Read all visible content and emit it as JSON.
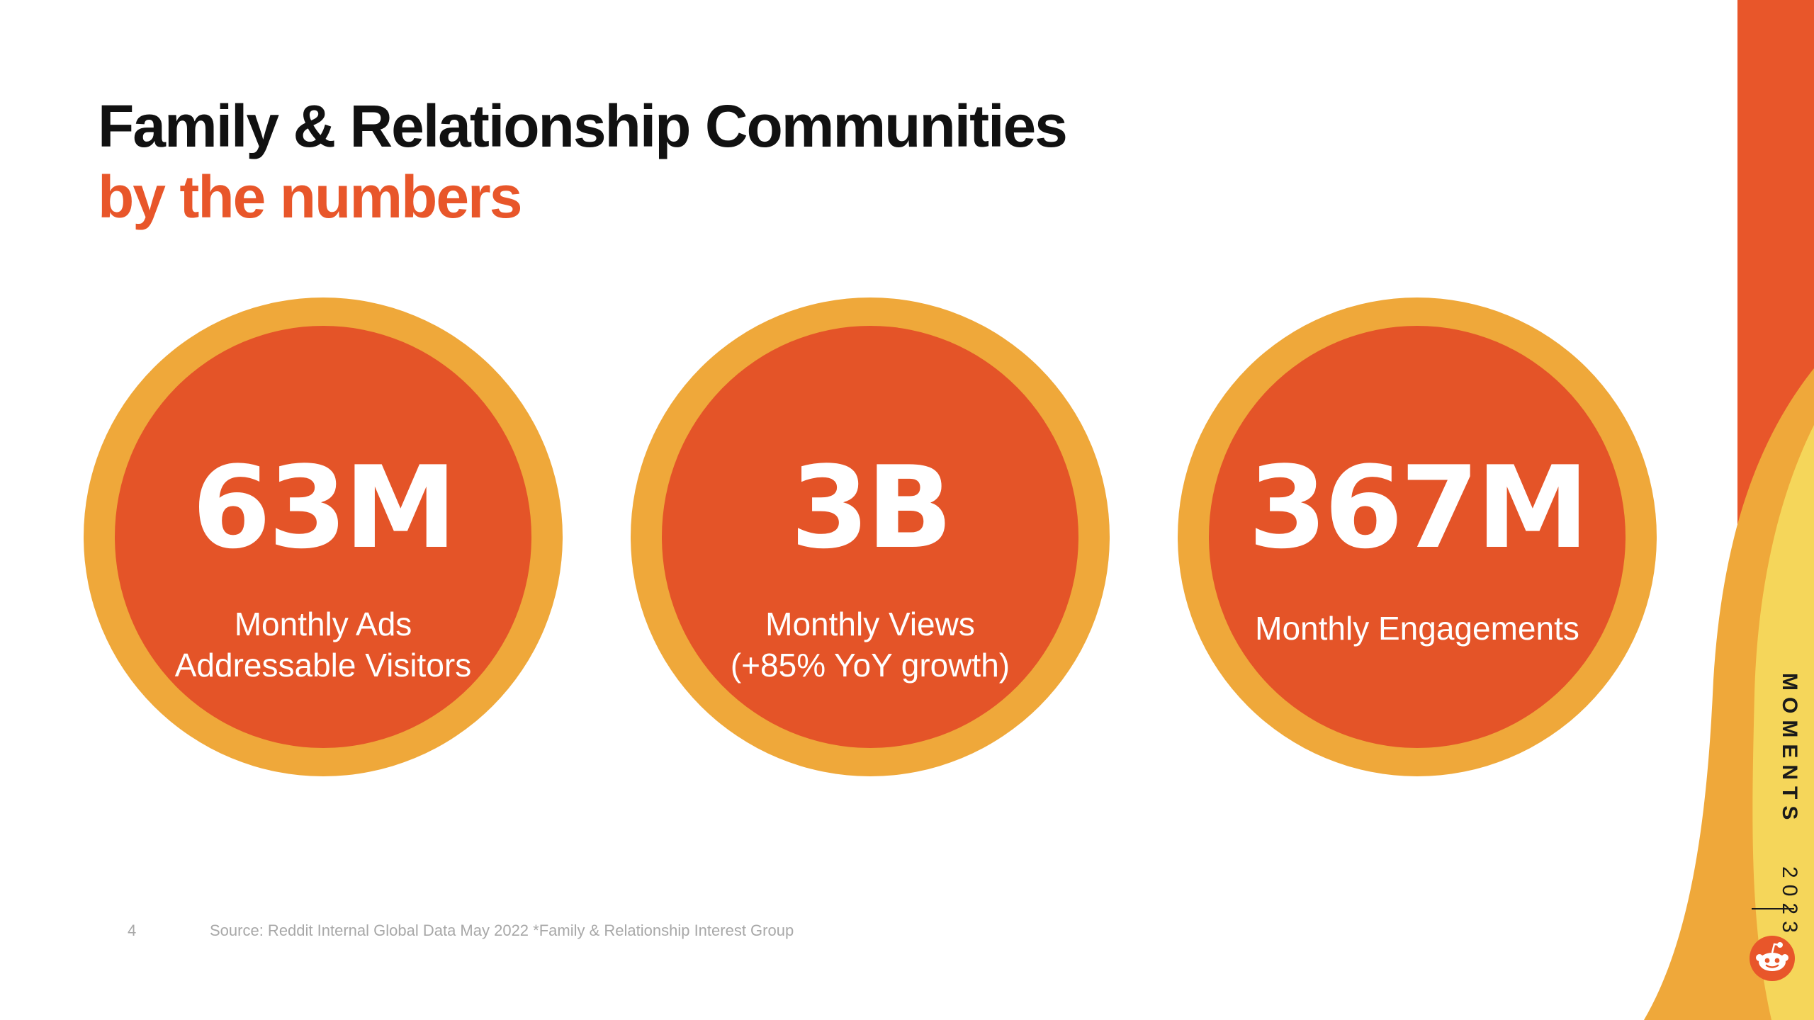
{
  "title": {
    "line1": "Family & Relationship Communities",
    "line2": "by the numbers"
  },
  "stats": [
    {
      "value": "63M",
      "label_lines": [
        "Monthly Ads",
        "Addressable Visitors"
      ]
    },
    {
      "value": "3B",
      "label_lines": [
        "Monthly Views",
        "(+85% YoY growth)"
      ]
    },
    {
      "value": "367M",
      "label_lines": [
        "Monthly Engagements"
      ]
    }
  ],
  "footer": {
    "page_number": "4",
    "source": "Source: Reddit Internal Global Data May 2022 *Family & Relationship Interest Group"
  },
  "brand": {
    "name": "MOMENTS",
    "year": "2023",
    "logo_icon": "reddit-snoo-icon"
  },
  "colors": {
    "accent_orange": "#e8562a",
    "ring_gold": "#efa83a",
    "circle_fill": "#e45428",
    "deco_yellow": "#f5d65a",
    "text_dark": "#111111"
  }
}
